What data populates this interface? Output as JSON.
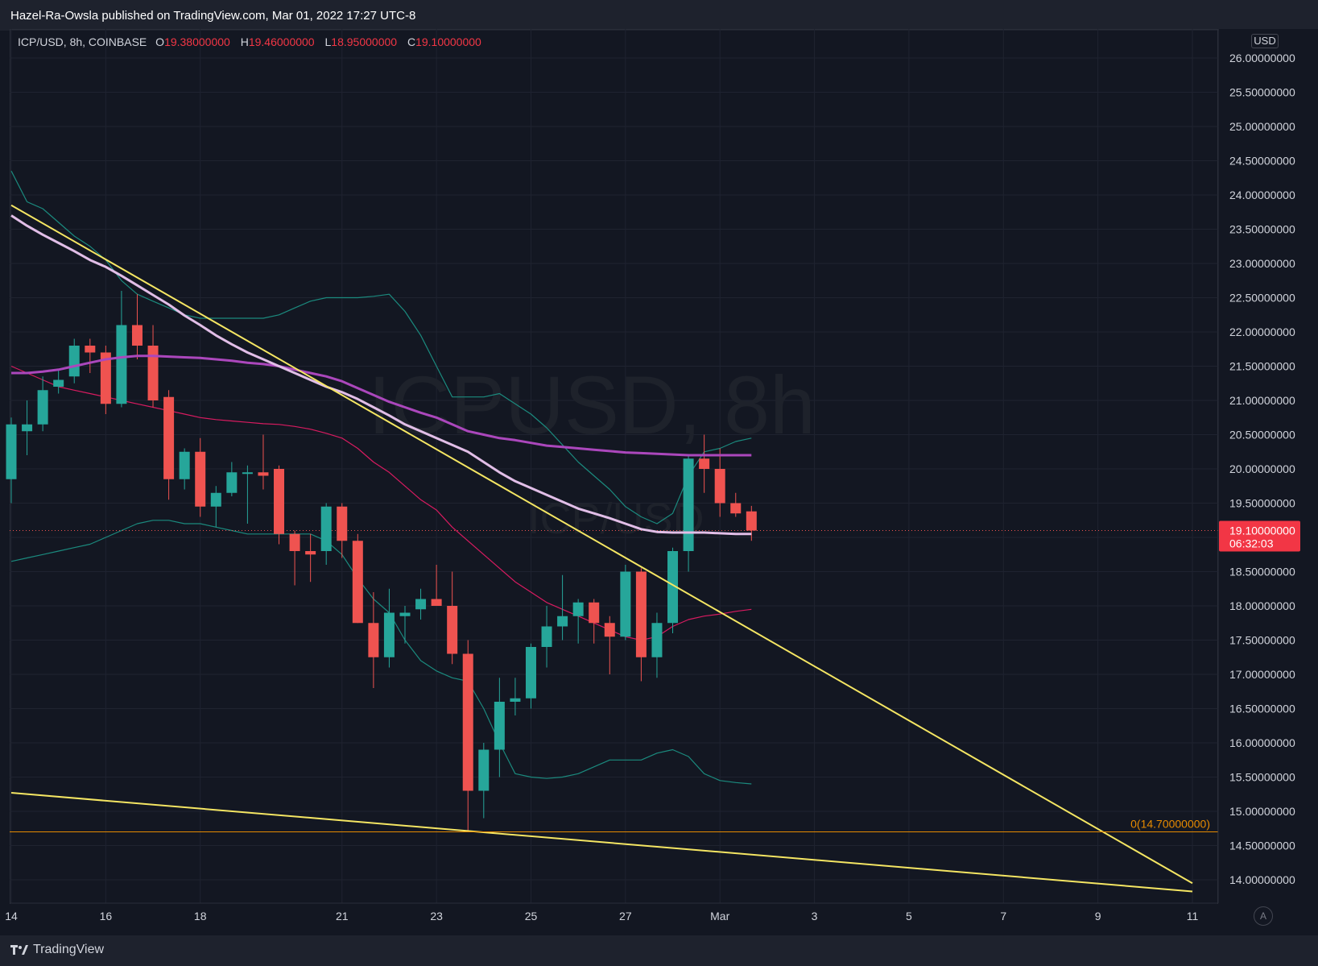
{
  "header": {
    "publisher_line": "Hazel-Ra-Owsla published on TradingView.com, Mar 01, 2022 17:27 UTC-8"
  },
  "legend": {
    "symbol": "ICP/USD, 8h, COINBASE",
    "open_key": "O",
    "open": "19.38000000",
    "high_key": "H",
    "high": "19.46000000",
    "low_key": "L",
    "low": "18.95000000",
    "close_key": "C",
    "close": "19.10000000"
  },
  "watermark": {
    "main": "ICPUSD, 8h",
    "sub": "ICP/USD"
  },
  "price_axis": {
    "currency_badge": "USD",
    "auto_button": "A"
  },
  "price_tag": {
    "price": "19.10000000",
    "countdown": "06:32:03"
  },
  "fib_label": "0(14.70000000)",
  "footer": {
    "brand": "TradingView"
  },
  "colors": {
    "background": "#131722",
    "up": "#26a69a",
    "down": "#ef5350",
    "trendline": "#f5e663",
    "ma_slow": "#ab47bc",
    "ma_fast": "#e1bee7",
    "bb_band": "#1b8a7e",
    "bb_basis": "#d81b60",
    "fib_line": "#e68a00"
  },
  "chart_data": {
    "type": "candlestick",
    "title": "ICP/USD, 8h, COINBASE",
    "y_ticks": [
      14,
      14.5,
      15,
      15.5,
      16,
      16.5,
      17,
      17.5,
      18,
      18.5,
      19,
      19.5,
      20,
      20.5,
      21,
      21.5,
      22,
      22.5,
      23,
      23.5,
      24,
      24.5,
      25,
      25.5,
      26
    ],
    "y_tick_labels": [
      "14.00000000",
      "14.50000000",
      "15.00000000",
      "15.50000000",
      "16.00000000",
      "16.50000000",
      "17.00000000",
      "17.50000000",
      "18.00000000",
      "18.50000000",
      "19.00000000",
      "19.50000000",
      "20.00000000",
      "20.50000000",
      "21.00000000",
      "21.50000000",
      "22.00000000",
      "22.50000000",
      "23.00000000",
      "23.50000000",
      "24.00000000",
      "24.50000000",
      "25.00000000",
      "25.50000000",
      "26.00000000"
    ],
    "x_ticks": [
      {
        "label": "14",
        "bar": 0
      },
      {
        "label": "16",
        "bar": 6
      },
      {
        "label": "18",
        "bar": 12
      },
      {
        "label": "21",
        "bar": 21
      },
      {
        "label": "23",
        "bar": 27
      },
      {
        "label": "25",
        "bar": 33
      },
      {
        "label": "27",
        "bar": 39
      },
      {
        "label": "Mar",
        "bar": 45
      },
      {
        "label": "3",
        "bar": 51
      },
      {
        "label": "5",
        "bar": 57
      },
      {
        "label": "7",
        "bar": 63
      },
      {
        "label": "9",
        "bar": 69
      },
      {
        "label": "11",
        "bar": 75
      }
    ],
    "ylim": [
      13.7,
      26.3
    ],
    "candles": [
      {
        "o": 19.85,
        "h": 20.75,
        "l": 19.5,
        "c": 20.65
      },
      {
        "o": 20.55,
        "h": 21.0,
        "l": 20.2,
        "c": 20.65
      },
      {
        "o": 20.65,
        "h": 21.35,
        "l": 20.55,
        "c": 21.15
      },
      {
        "o": 21.2,
        "h": 21.45,
        "l": 21.1,
        "c": 21.3
      },
      {
        "o": 21.35,
        "h": 21.9,
        "l": 21.25,
        "c": 21.8
      },
      {
        "o": 21.8,
        "h": 21.9,
        "l": 21.4,
        "c": 21.7
      },
      {
        "o": 21.7,
        "h": 21.8,
        "l": 20.8,
        "c": 20.95
      },
      {
        "o": 20.95,
        "h": 22.6,
        "l": 20.9,
        "c": 22.1
      },
      {
        "o": 22.1,
        "h": 22.55,
        "l": 21.6,
        "c": 21.8
      },
      {
        "o": 21.8,
        "h": 22.1,
        "l": 20.9,
        "c": 21.0
      },
      {
        "o": 21.05,
        "h": 21.15,
        "l": 19.55,
        "c": 19.85
      },
      {
        "o": 19.85,
        "h": 20.3,
        "l": 19.7,
        "c": 20.25
      },
      {
        "o": 20.25,
        "h": 20.45,
        "l": 19.3,
        "c": 19.45
      },
      {
        "o": 19.45,
        "h": 19.75,
        "l": 19.15,
        "c": 19.65
      },
      {
        "o": 19.65,
        "h": 20.1,
        "l": 19.6,
        "c": 19.95
      },
      {
        "o": 19.95,
        "h": 20.05,
        "l": 19.2,
        "c": 19.95
      },
      {
        "o": 19.95,
        "h": 20.5,
        "l": 19.7,
        "c": 19.9
      },
      {
        "o": 20.0,
        "h": 20.05,
        "l": 18.9,
        "c": 19.05
      },
      {
        "o": 19.05,
        "h": 19.1,
        "l": 18.3,
        "c": 18.8
      },
      {
        "o": 18.8,
        "h": 19.05,
        "l": 18.35,
        "c": 18.75
      },
      {
        "o": 18.8,
        "h": 19.5,
        "l": 18.6,
        "c": 19.45
      },
      {
        "o": 19.45,
        "h": 19.5,
        "l": 18.7,
        "c": 18.95
      },
      {
        "o": 18.95,
        "h": 19.05,
        "l": 17.75,
        "c": 17.75
      },
      {
        "o": 17.75,
        "h": 18.2,
        "l": 16.8,
        "c": 17.25
      },
      {
        "o": 17.25,
        "h": 18.25,
        "l": 17.1,
        "c": 17.9
      },
      {
        "o": 17.85,
        "h": 18.0,
        "l": 17.45,
        "c": 17.9
      },
      {
        "o": 17.95,
        "h": 18.25,
        "l": 17.8,
        "c": 18.1
      },
      {
        "o": 18.1,
        "h": 18.6,
        "l": 18.0,
        "c": 18.0
      },
      {
        "o": 18.0,
        "h": 18.5,
        "l": 17.15,
        "c": 17.3
      },
      {
        "o": 17.3,
        "h": 17.5,
        "l": 14.7,
        "c": 15.3
      },
      {
        "o": 15.3,
        "h": 16.0,
        "l": 14.9,
        "c": 15.9
      },
      {
        "o": 15.9,
        "h": 16.95,
        "l": 15.5,
        "c": 16.6
      },
      {
        "o": 16.6,
        "h": 16.95,
        "l": 16.4,
        "c": 16.65
      },
      {
        "o": 16.65,
        "h": 17.45,
        "l": 16.5,
        "c": 17.4
      },
      {
        "o": 17.4,
        "h": 18.0,
        "l": 17.1,
        "c": 17.7
      },
      {
        "o": 17.7,
        "h": 18.45,
        "l": 17.5,
        "c": 17.85
      },
      {
        "o": 17.85,
        "h": 18.1,
        "l": 17.45,
        "c": 18.05
      },
      {
        "o": 18.05,
        "h": 18.1,
        "l": 17.45,
        "c": 17.75
      },
      {
        "o": 17.75,
        "h": 17.85,
        "l": 17.0,
        "c": 17.55
      },
      {
        "o": 17.55,
        "h": 18.6,
        "l": 17.5,
        "c": 18.5
      },
      {
        "o": 18.5,
        "h": 18.55,
        "l": 16.9,
        "c": 17.25
      },
      {
        "o": 17.25,
        "h": 17.9,
        "l": 16.95,
        "c": 17.75
      },
      {
        "o": 17.75,
        "h": 18.85,
        "l": 17.6,
        "c": 18.8
      },
      {
        "o": 18.8,
        "h": 20.2,
        "l": 18.5,
        "c": 20.15
      },
      {
        "o": 20.15,
        "h": 20.5,
        "l": 19.65,
        "c": 20.0
      },
      {
        "o": 20.0,
        "h": 20.3,
        "l": 19.3,
        "c": 19.5
      },
      {
        "o": 19.5,
        "h": 19.65,
        "l": 19.3,
        "c": 19.35
      },
      {
        "o": 19.38,
        "h": 19.46,
        "l": 18.95,
        "c": 19.1
      }
    ],
    "ma_slow": [
      21.4,
      21.4,
      21.42,
      21.45,
      21.5,
      21.55,
      21.6,
      21.63,
      21.65,
      21.65,
      21.64,
      21.63,
      21.62,
      21.6,
      21.58,
      21.55,
      21.53,
      21.5,
      21.45,
      21.4,
      21.35,
      21.28,
      21.18,
      21.08,
      20.98,
      20.9,
      20.82,
      20.75,
      20.65,
      20.55,
      20.5,
      20.45,
      20.42,
      20.38,
      20.34,
      20.32,
      20.3,
      20.28,
      20.26,
      20.24,
      20.23,
      20.22,
      20.21,
      20.2,
      20.2,
      20.2,
      20.2,
      20.2
    ],
    "ma_fast": [
      23.7,
      23.55,
      23.42,
      23.3,
      23.18,
      23.05,
      22.95,
      22.82,
      22.68,
      22.54,
      22.4,
      22.24,
      22.1,
      21.95,
      21.82,
      21.7,
      21.6,
      21.5,
      21.4,
      21.3,
      21.2,
      21.12,
      21.02,
      20.9,
      20.78,
      20.65,
      20.55,
      20.45,
      20.35,
      20.25,
      20.1,
      19.95,
      19.82,
      19.72,
      19.62,
      19.52,
      19.42,
      19.35,
      19.28,
      19.2,
      19.12,
      19.08,
      19.07,
      19.07,
      19.07,
      19.06,
      19.05,
      19.05
    ],
    "bb_upper": [
      24.35,
      23.9,
      23.8,
      23.6,
      23.4,
      23.25,
      23.05,
      22.75,
      22.55,
      22.45,
      22.35,
      22.25,
      22.2,
      22.2,
      22.2,
      22.2,
      22.2,
      22.25,
      22.35,
      22.45,
      22.5,
      22.5,
      22.5,
      22.52,
      22.55,
      22.3,
      21.95,
      21.5,
      21.05,
      21.05,
      21.05,
      21.1,
      20.95,
      20.8,
      20.6,
      20.35,
      20.1,
      19.9,
      19.7,
      19.45,
      19.3,
      19.2,
      19.35,
      19.9,
      20.25,
      20.3,
      20.4,
      20.45
    ],
    "bb_basis": [
      21.5,
      21.4,
      21.3,
      21.2,
      21.15,
      21.1,
      21.05,
      21.0,
      20.95,
      20.9,
      20.85,
      20.8,
      20.75,
      20.72,
      20.7,
      20.68,
      20.66,
      20.65,
      20.62,
      20.58,
      20.52,
      20.45,
      20.3,
      20.1,
      19.95,
      19.75,
      19.55,
      19.4,
      19.15,
      18.95,
      18.75,
      18.55,
      18.35,
      18.2,
      18.05,
      17.95,
      17.85,
      17.75,
      17.65,
      17.55,
      17.5,
      17.55,
      17.7,
      17.8,
      17.85,
      17.88,
      17.92,
      17.95
    ],
    "bb_lower": [
      18.65,
      18.7,
      18.75,
      18.8,
      18.85,
      18.9,
      19.0,
      19.1,
      19.2,
      19.25,
      19.25,
      19.2,
      19.2,
      19.15,
      19.1,
      19.05,
      19.05,
      19.05,
      19.05,
      19.05,
      18.95,
      18.75,
      18.4,
      18.1,
      17.9,
      17.5,
      17.2,
      17.05,
      16.95,
      16.9,
      16.5,
      16.0,
      15.55,
      15.5,
      15.48,
      15.5,
      15.55,
      15.65,
      15.75,
      15.75,
      15.75,
      15.85,
      15.9,
      15.8,
      15.55,
      15.45,
      15.42,
      15.4
    ],
    "trendlines": [
      {
        "p1": {
          "bar": 0,
          "price": 23.85
        },
        "p2": {
          "bar": 75,
          "price": 13.95
        }
      },
      {
        "p1": {
          "bar": 0,
          "price": 15.27
        },
        "p2": {
          "bar": 75,
          "price": 13.83
        }
      }
    ],
    "horizontal_line": {
      "price": 14.7,
      "label": "0(14.70000000)"
    },
    "last_price": 19.1
  }
}
